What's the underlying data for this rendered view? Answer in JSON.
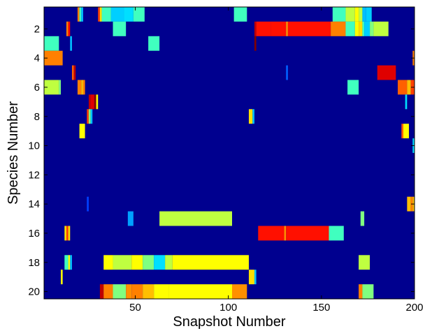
{
  "chart_data": {
    "type": "heatmap",
    "title": "",
    "xlabel": "Snapshot Number",
    "ylabel": "Species Number",
    "xlim": [
      1,
      200
    ],
    "ylim": [
      0.5,
      20.5
    ],
    "y_direction": "reversed",
    "x_ticks": [
      50,
      100,
      150,
      200
    ],
    "y_ticks": [
      2,
      4,
      6,
      8,
      10,
      12,
      14,
      16,
      18,
      20
    ],
    "grid": false,
    "colormap": "jet",
    "background_color": "#00008f",
    "cells": [
      {
        "row": 1,
        "x0": 19,
        "x1": 20,
        "color": "#ff8000"
      },
      {
        "row": 1,
        "x0": 20,
        "x1": 21,
        "color": "#40ffbf"
      },
      {
        "row": 1,
        "x0": 21,
        "x1": 22,
        "color": "#00bfff"
      },
      {
        "row": 1,
        "x0": 30,
        "x1": 31,
        "color": "#ff4000"
      },
      {
        "row": 1,
        "x0": 31,
        "x1": 32,
        "color": "#ffdf00"
      },
      {
        "row": 1,
        "x0": 32,
        "x1": 37,
        "color": "#40ffbf"
      },
      {
        "row": 1,
        "x0": 37,
        "x1": 44,
        "color": "#00cfff"
      },
      {
        "row": 1,
        "x0": 44,
        "x1": 49,
        "color": "#00dfff"
      },
      {
        "row": 1,
        "x0": 49,
        "x1": 55,
        "color": "#40ffbf"
      },
      {
        "row": 1,
        "x0": 103,
        "x1": 110,
        "color": "#40ffbf"
      },
      {
        "row": 1,
        "x0": 156,
        "x1": 163,
        "color": "#40ffbf"
      },
      {
        "row": 1,
        "x0": 163,
        "x1": 168,
        "color": "#bfff40"
      },
      {
        "row": 1,
        "x0": 168,
        "x1": 170,
        "color": "#ffff00"
      },
      {
        "row": 1,
        "x0": 170,
        "x1": 172,
        "color": "#bfff40"
      },
      {
        "row": 1,
        "x0": 172,
        "x1": 174,
        "color": "#00bfff"
      },
      {
        "row": 1,
        "x0": 174,
        "x1": 177,
        "color": "#00cfff"
      },
      {
        "row": 2,
        "x0": 13,
        "x1": 14,
        "color": "#ff8000"
      },
      {
        "row": 2,
        "x0": 14,
        "x1": 15,
        "color": "#ff0000"
      },
      {
        "row": 2,
        "x0": 38,
        "x1": 45,
        "color": "#40ffbf"
      },
      {
        "row": 2,
        "x0": 114,
        "x1": 115,
        "color": "#bf0000"
      },
      {
        "row": 2,
        "x0": 115,
        "x1": 123,
        "color": "#ff1000"
      },
      {
        "row": 2,
        "x0": 123,
        "x1": 131,
        "color": "#ff1000"
      },
      {
        "row": 2,
        "x0": 131,
        "x1": 132,
        "color": "#ff9000"
      },
      {
        "row": 2,
        "x0": 132,
        "x1": 155,
        "color": "#ff1000"
      },
      {
        "row": 2,
        "x0": 155,
        "x1": 163,
        "color": "#ff8000"
      },
      {
        "row": 2,
        "x0": 163,
        "x1": 168,
        "color": "#40ffbf"
      },
      {
        "row": 2,
        "x0": 168,
        "x1": 170,
        "color": "#ffff00"
      },
      {
        "row": 2,
        "x0": 170,
        "x1": 172,
        "color": "#ffdf00"
      },
      {
        "row": 2,
        "x0": 172,
        "x1": 173,
        "color": "#40ffbf"
      },
      {
        "row": 2,
        "x0": 173,
        "x1": 176,
        "color": "#00cfff"
      },
      {
        "row": 2,
        "x0": 176,
        "x1": 178,
        "color": "#80ff80"
      },
      {
        "row": 2,
        "x0": 178,
        "x1": 186,
        "color": "#bfff40"
      },
      {
        "row": 3,
        "x0": 1,
        "x1": 9,
        "color": "#40ffbf"
      },
      {
        "row": 3,
        "x0": 15,
        "x1": 16,
        "color": "#00bfff"
      },
      {
        "row": 3,
        "x0": 57,
        "x1": 63,
        "color": "#40ffbf"
      },
      {
        "row": 3,
        "x0": 114,
        "x1": 115,
        "color": "#800000"
      },
      {
        "row": 4,
        "x0": 1,
        "x1": 11,
        "color": "#ff8000"
      },
      {
        "row": 4,
        "x0": 199,
        "x1": 200,
        "color": "#ff8000"
      },
      {
        "row": 5,
        "x0": 16,
        "x1": 17,
        "color": "#ff6000"
      },
      {
        "row": 5,
        "x0": 17,
        "x1": 18,
        "color": "#bf0000"
      },
      {
        "row": 5,
        "x0": 131,
        "x1": 132,
        "color": "#0060ff"
      },
      {
        "row": 5,
        "x0": 180,
        "x1": 190,
        "color": "#df0000"
      },
      {
        "row": 6,
        "x0": 1,
        "x1": 9,
        "color": "#bfff40"
      },
      {
        "row": 6,
        "x0": 9,
        "x1": 10,
        "color": "#80ff80"
      },
      {
        "row": 6,
        "x0": 19,
        "x1": 21,
        "color": "#ff8000"
      },
      {
        "row": 6,
        "x0": 21,
        "x1": 22,
        "color": "#ffbf00"
      },
      {
        "row": 6,
        "x0": 22,
        "x1": 23,
        "color": "#ff8000"
      },
      {
        "row": 6,
        "x0": 164,
        "x1": 170,
        "color": "#40ffbf"
      },
      {
        "row": 6,
        "x0": 191,
        "x1": 196,
        "color": "#ff6000"
      },
      {
        "row": 6,
        "x0": 196,
        "x1": 198,
        "color": "#ffbf00"
      },
      {
        "row": 6,
        "x0": 198,
        "x1": 200,
        "color": "#ff4000"
      },
      {
        "row": 7,
        "x0": 25,
        "x1": 26,
        "color": "#bf0000"
      },
      {
        "row": 7,
        "x0": 26,
        "x1": 28,
        "color": "#df0000"
      },
      {
        "row": 7,
        "x0": 28,
        "x1": 29,
        "color": "#800000"
      },
      {
        "row": 7,
        "x0": 29,
        "x1": 30,
        "color": "#ffff00"
      },
      {
        "row": 7,
        "x0": 195,
        "x1": 196,
        "color": "#00dfff"
      },
      {
        "row": 8,
        "x0": 24,
        "x1": 25,
        "color": "#ff4000"
      },
      {
        "row": 8,
        "x0": 25,
        "x1": 26,
        "color": "#80ff80"
      },
      {
        "row": 8,
        "x0": 26,
        "x1": 27,
        "color": "#00bfff"
      },
      {
        "row": 8,
        "x0": 111,
        "x1": 113,
        "color": "#ffdf00"
      },
      {
        "row": 8,
        "x0": 113,
        "x1": 114,
        "color": "#00bfff"
      },
      {
        "row": 9,
        "x0": 20,
        "x1": 23,
        "color": "#ffff00"
      },
      {
        "row": 9,
        "x0": 193,
        "x1": 194,
        "color": "#ff6000"
      },
      {
        "row": 9,
        "x0": 194,
        "x1": 197,
        "color": "#ffff00"
      },
      {
        "row": 10,
        "x0": 199,
        "x1": 200,
        "color": "#00dfff"
      },
      {
        "row": 14,
        "x0": 24,
        "x1": 25,
        "color": "#0040ff"
      },
      {
        "row": 14,
        "x0": 196,
        "x1": 198,
        "color": "#ffbf00"
      },
      {
        "row": 14,
        "x0": 198,
        "x1": 199,
        "color": "#ff8000"
      },
      {
        "row": 14,
        "x0": 199,
        "x1": 200,
        "color": "#ffbf00"
      },
      {
        "row": 15,
        "x0": 46,
        "x1": 49,
        "color": "#00a0ff"
      },
      {
        "row": 15,
        "x0": 63,
        "x1": 102,
        "color": "#bfff40"
      },
      {
        "row": 15,
        "x0": 171,
        "x1": 173,
        "color": "#80ff80"
      },
      {
        "row": 16,
        "x0": 12,
        "x1": 13,
        "color": "#ffdf00"
      },
      {
        "row": 16,
        "x0": 13,
        "x1": 14,
        "color": "#ff4000"
      },
      {
        "row": 16,
        "x0": 14,
        "x1": 15,
        "color": "#ffdf00"
      },
      {
        "row": 16,
        "x0": 116,
        "x1": 130,
        "color": "#ff1000"
      },
      {
        "row": 16,
        "x0": 130,
        "x1": 131,
        "color": "#ff9000"
      },
      {
        "row": 16,
        "x0": 131,
        "x1": 154,
        "color": "#ff1000"
      },
      {
        "row": 16,
        "x0": 154,
        "x1": 162,
        "color": "#40ffbf"
      },
      {
        "row": 18,
        "x0": 12,
        "x1": 14,
        "color": "#40ffbf"
      },
      {
        "row": 18,
        "x0": 14,
        "x1": 15,
        "color": "#ffff00"
      },
      {
        "row": 18,
        "x0": 15,
        "x1": 16,
        "color": "#00bfff"
      },
      {
        "row": 18,
        "x0": 33,
        "x1": 38,
        "color": "#ffff00"
      },
      {
        "row": 18,
        "x0": 38,
        "x1": 48,
        "color": "#bfff40"
      },
      {
        "row": 18,
        "x0": 48,
        "x1": 54,
        "color": "#ffff00"
      },
      {
        "row": 18,
        "x0": 54,
        "x1": 60,
        "color": "#80ff80"
      },
      {
        "row": 18,
        "x0": 60,
        "x1": 66,
        "color": "#00dfff"
      },
      {
        "row": 18,
        "x0": 66,
        "x1": 70,
        "color": "#bfff40"
      },
      {
        "row": 18,
        "x0": 70,
        "x1": 111,
        "color": "#ffff00"
      },
      {
        "row": 18,
        "x0": 170,
        "x1": 176,
        "color": "#bfff40"
      },
      {
        "row": 19,
        "x0": 10,
        "x1": 11,
        "color": "#ffff00"
      },
      {
        "row": 19,
        "x0": 111,
        "x1": 114,
        "color": "#ffdf00"
      },
      {
        "row": 19,
        "x0": 114,
        "x1": 115,
        "color": "#00bfff"
      },
      {
        "row": 20,
        "x0": 31,
        "x1": 33,
        "color": "#bf0000"
      },
      {
        "row": 20,
        "x0": 33,
        "x1": 38,
        "color": "#ff8000"
      },
      {
        "row": 20,
        "x0": 38,
        "x1": 45,
        "color": "#80ff80"
      },
      {
        "row": 20,
        "x0": 45,
        "x1": 48,
        "color": "#ff9000"
      },
      {
        "row": 20,
        "x0": 48,
        "x1": 54,
        "color": "#ff8000"
      },
      {
        "row": 20,
        "x0": 54,
        "x1": 60,
        "color": "#ffbf00"
      },
      {
        "row": 20,
        "x0": 60,
        "x1": 68,
        "color": "#ffff00"
      },
      {
        "row": 20,
        "x0": 68,
        "x1": 102,
        "color": "#ffff00"
      },
      {
        "row": 20,
        "x0": 102,
        "x1": 110,
        "color": "#ff9000"
      },
      {
        "row": 20,
        "x0": 170,
        "x1": 172,
        "color": "#ff8000"
      },
      {
        "row": 20,
        "x0": 172,
        "x1": 178,
        "color": "#80ff80"
      }
    ]
  }
}
